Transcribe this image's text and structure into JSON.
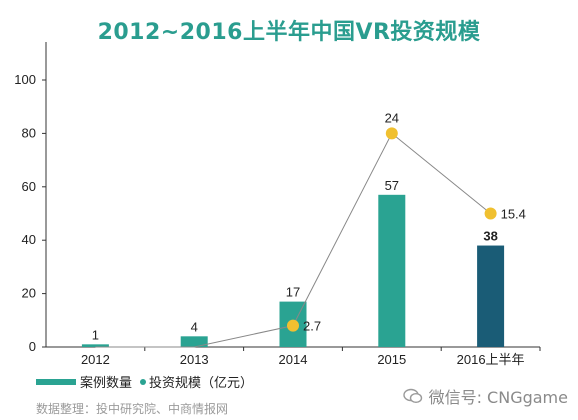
{
  "chart_data": {
    "type": "bar",
    "title": "2012~2016上半年中国VR投资规模",
    "categories": [
      "2012",
      "2013",
      "2014",
      "2015",
      "2016上半年"
    ],
    "series": [
      {
        "name": "案例数量",
        "kind": "bar",
        "values": [
          1,
          4,
          17,
          57,
          38
        ],
        "colors": [
          "#2aa392",
          "#2aa392",
          "#2aa392",
          "#2aa392",
          "#1a5c76"
        ]
      },
      {
        "name": "投资规模（亿元）",
        "kind": "line",
        "values": [
          null,
          null,
          2.7,
          24,
          15.4
        ],
        "plot_y": [
          0,
          0,
          8,
          80,
          50
        ],
        "color": "#f0c030",
        "line_color": "#888888"
      }
    ],
    "ylim": [
      0,
      100
    ],
    "yticks": [
      0,
      20,
      40,
      60,
      80,
      100
    ],
    "grid": false,
    "legend_position": "bottom-left"
  },
  "legend": {
    "bar_label": "案例数量",
    "line_label": "投资规模（亿元）"
  },
  "source": "数据整理：投中研究院、中商情报网",
  "watermark": "微信号: CNGgame"
}
